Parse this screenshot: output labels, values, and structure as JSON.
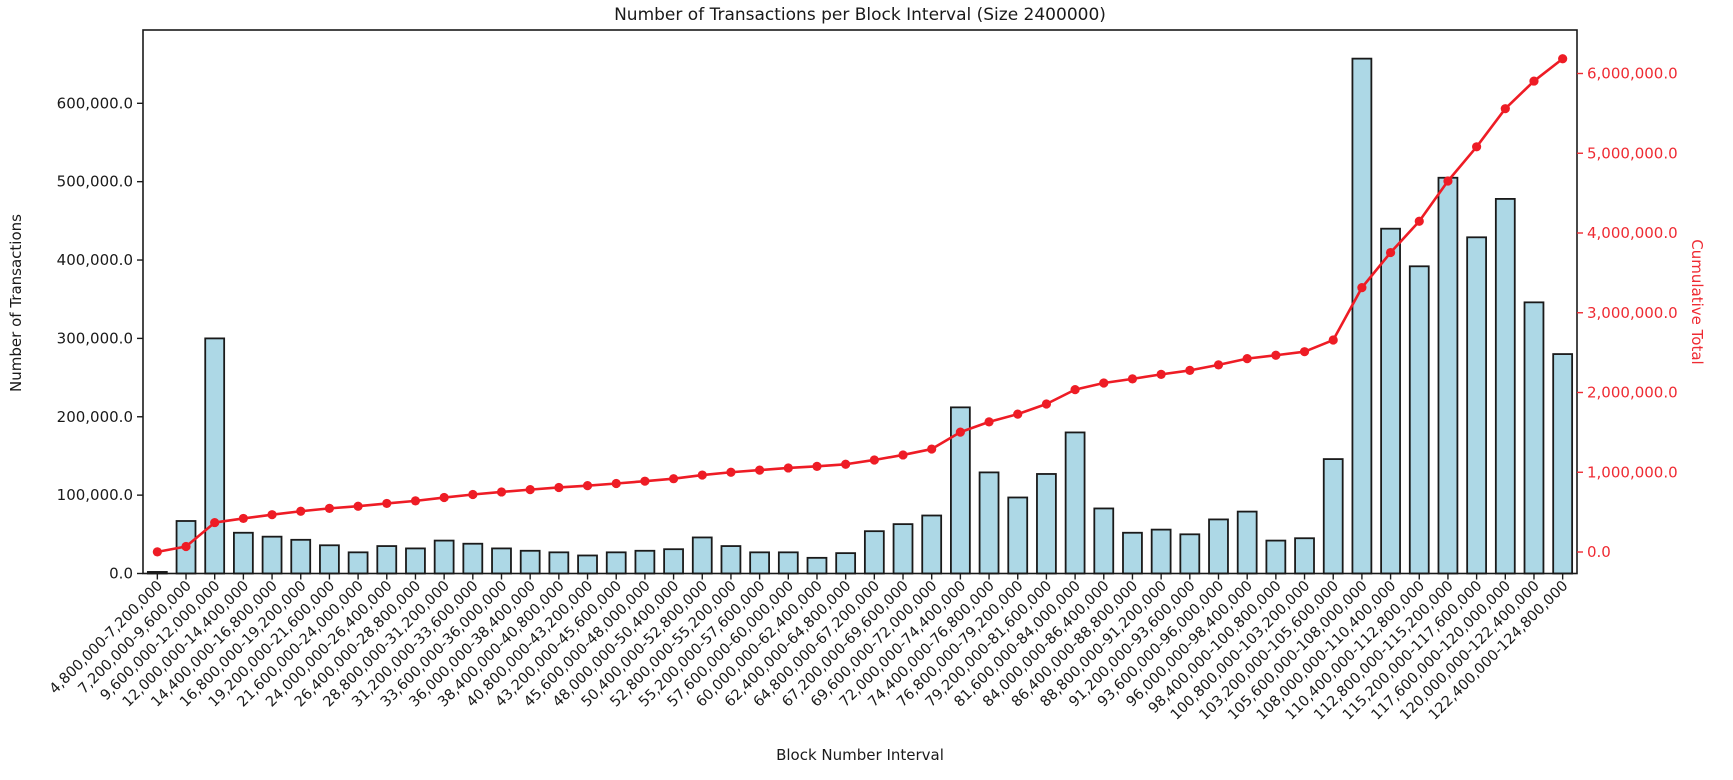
{
  "title": "Number of Transactions per Block Interval (Size 2400000)",
  "axes": {
    "x_label": "Block Number Interval",
    "y_left_label": "Number of Transactions",
    "y_right_label": "Cumulative Total"
  },
  "colors": {
    "bar_fill": "#ADD8E6",
    "bar_edge": "#1a1a1a",
    "line_red": "#ee1c25",
    "right_axis_red": "#ef2b33",
    "axis_black": "#1a1a1a",
    "background": "#ffffff"
  },
  "chart_data": {
    "type": "bar",
    "title": "Number of Transactions per Block Interval (Size 2400000)",
    "xlabel": "Block Number Interval",
    "ylabel_left": "Number of Transactions",
    "ylabel_right": "Cumulative Total",
    "grid": false,
    "legend": "none",
    "y_left_ticks": [
      0,
      100000,
      200000,
      300000,
      400000,
      500000,
      600000
    ],
    "y_right_ticks": [
      0,
      1000000,
      2000000,
      3000000,
      4000000,
      5000000,
      6000000
    ],
    "ylim_left": [
      0,
      693000
    ],
    "ylim_right": [
      -280000,
      6550000
    ],
    "x_tick_rotation": 45,
    "categories": [
      "4,800,000-7,200,000",
      "7,200,000-9,600,000",
      "9,600,000-12,000,000",
      "12,000,000-14,400,000",
      "14,400,000-16,800,000",
      "16,800,000-19,200,000",
      "19,200,000-21,600,000",
      "21,600,000-24,000,000",
      "24,000,000-26,400,000",
      "26,400,000-28,800,000",
      "28,800,000-31,200,000",
      "31,200,000-33,600,000",
      "33,600,000-36,000,000",
      "36,000,000-38,400,000",
      "38,400,000-40,800,000",
      "40,800,000-43,200,000",
      "43,200,000-45,600,000",
      "45,600,000-48,000,000",
      "48,000,000-50,400,000",
      "50,400,000-52,800,000",
      "52,800,000-55,200,000",
      "55,200,000-57,600,000",
      "57,600,000-60,000,000",
      "60,000,000-62,400,000",
      "62,400,000-64,800,000",
      "64,800,000-67,200,000",
      "67,200,000-69,600,000",
      "69,600,000-72,000,000",
      "72,000,000-74,400,000",
      "74,400,000-76,800,000",
      "76,800,000-79,200,000",
      "79,200,000-81,600,000",
      "81,600,000-84,000,000",
      "84,000,000-86,400,000",
      "86,400,000-88,800,000",
      "88,800,000-91,200,000",
      "91,200,000-93,600,000",
      "93,600,000-96,000,000",
      "96,000,000-98,400,000",
      "98,400,000-100,800,000",
      "100,800,000-103,200,000",
      "103,200,000-105,600,000",
      "105,600,000-108,000,000",
      "108,000,000-110,400,000",
      "110,400,000-112,800,000",
      "112,800,000-115,200,000",
      "115,200,000-117,600,000",
      "117,600,000-120,000,000",
      "120,000,000-122,400,000",
      "122,400,000-124,800,000"
    ],
    "series": [
      {
        "name": "Number of Transactions",
        "type": "bar",
        "axis": "left",
        "values": [
          2000,
          67000,
          300000,
          52000,
          47000,
          43000,
          36000,
          27000,
          35000,
          32000,
          42000,
          38000,
          32000,
          29000,
          27000,
          23000,
          27000,
          29000,
          31000,
          46000,
          35000,
          27000,
          27000,
          20000,
          26000,
          54000,
          63000,
          74000,
          212000,
          129000,
          97000,
          127000,
          180000,
          83000,
          52000,
          56000,
          50000,
          69000,
          79000,
          42000,
          45000,
          146000,
          657000,
          440000,
          392000,
          505000,
          429000,
          478000,
          346000,
          280000
        ]
      },
      {
        "name": "Cumulative Total",
        "type": "line",
        "axis": "right",
        "values": [
          2000,
          69000,
          369000,
          421000,
          468000,
          511000,
          547000,
          574000,
          609000,
          641000,
          683000,
          721000,
          753000,
          782000,
          809000,
          832000,
          859000,
          888000,
          919000,
          965000,
          1000000,
          1027000,
          1054000,
          1074000,
          1100000,
          1154000,
          1217000,
          1291000,
          1503000,
          1632000,
          1729000,
          1856000,
          2036000,
          2119000,
          2171000,
          2227000,
          2277000,
          2346000,
          2425000,
          2467000,
          2512000,
          2658000,
          3315000,
          3755000,
          4147000,
          4652000,
          5081000,
          5559000,
          5905000,
          6185000
        ]
      }
    ]
  }
}
